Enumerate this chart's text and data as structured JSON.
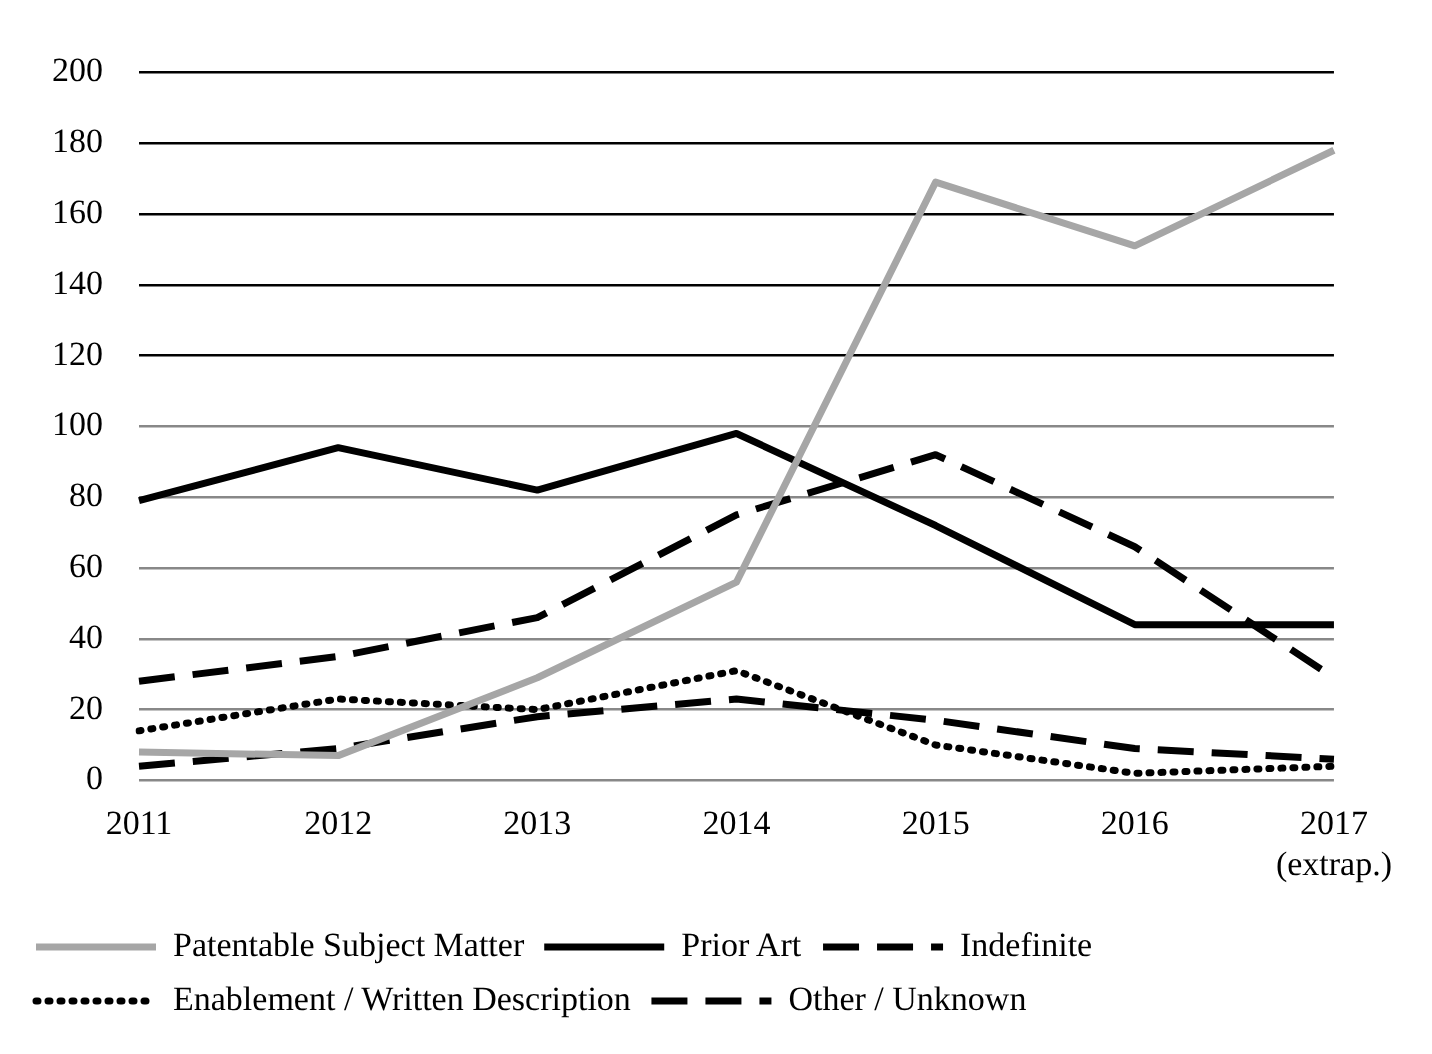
{
  "chart_data": {
    "type": "line",
    "categories": [
      "2011",
      "2012",
      "2013",
      "2014",
      "2015",
      "2016",
      "2017\n(extrap.)"
    ],
    "series": [
      {
        "name": "Patentable Subject Matter",
        "color": "#a6a6a6",
        "line_style": "solid",
        "values": [
          8,
          7,
          29,
          56,
          169,
          151,
          178
        ]
      },
      {
        "name": "Prior Art",
        "color": "#000000",
        "line_style": "solid",
        "values": [
          79,
          94,
          82,
          98,
          72,
          44,
          44
        ]
      },
      {
        "name": "Indefinite",
        "color": "#000000",
        "line_style": "dashed",
        "values": [
          28,
          35,
          46,
          75,
          92,
          66,
          29
        ]
      },
      {
        "name": "Enablement / Written Description",
        "color": "#000000",
        "line_style": "dotted",
        "values": [
          14,
          23,
          20,
          31,
          10,
          2,
          4
        ]
      },
      {
        "name": "Other / Unknown",
        "color": "#000000",
        "line_style": "dashed",
        "values": [
          4,
          9,
          18,
          23,
          17,
          9,
          6
        ]
      }
    ],
    "ylim": [
      0,
      200
    ],
    "yticks": [
      0,
      20,
      40,
      60,
      80,
      100,
      120,
      140,
      160,
      180,
      200
    ],
    "grid": "y",
    "legend": "bottom",
    "marker": "none"
  }
}
